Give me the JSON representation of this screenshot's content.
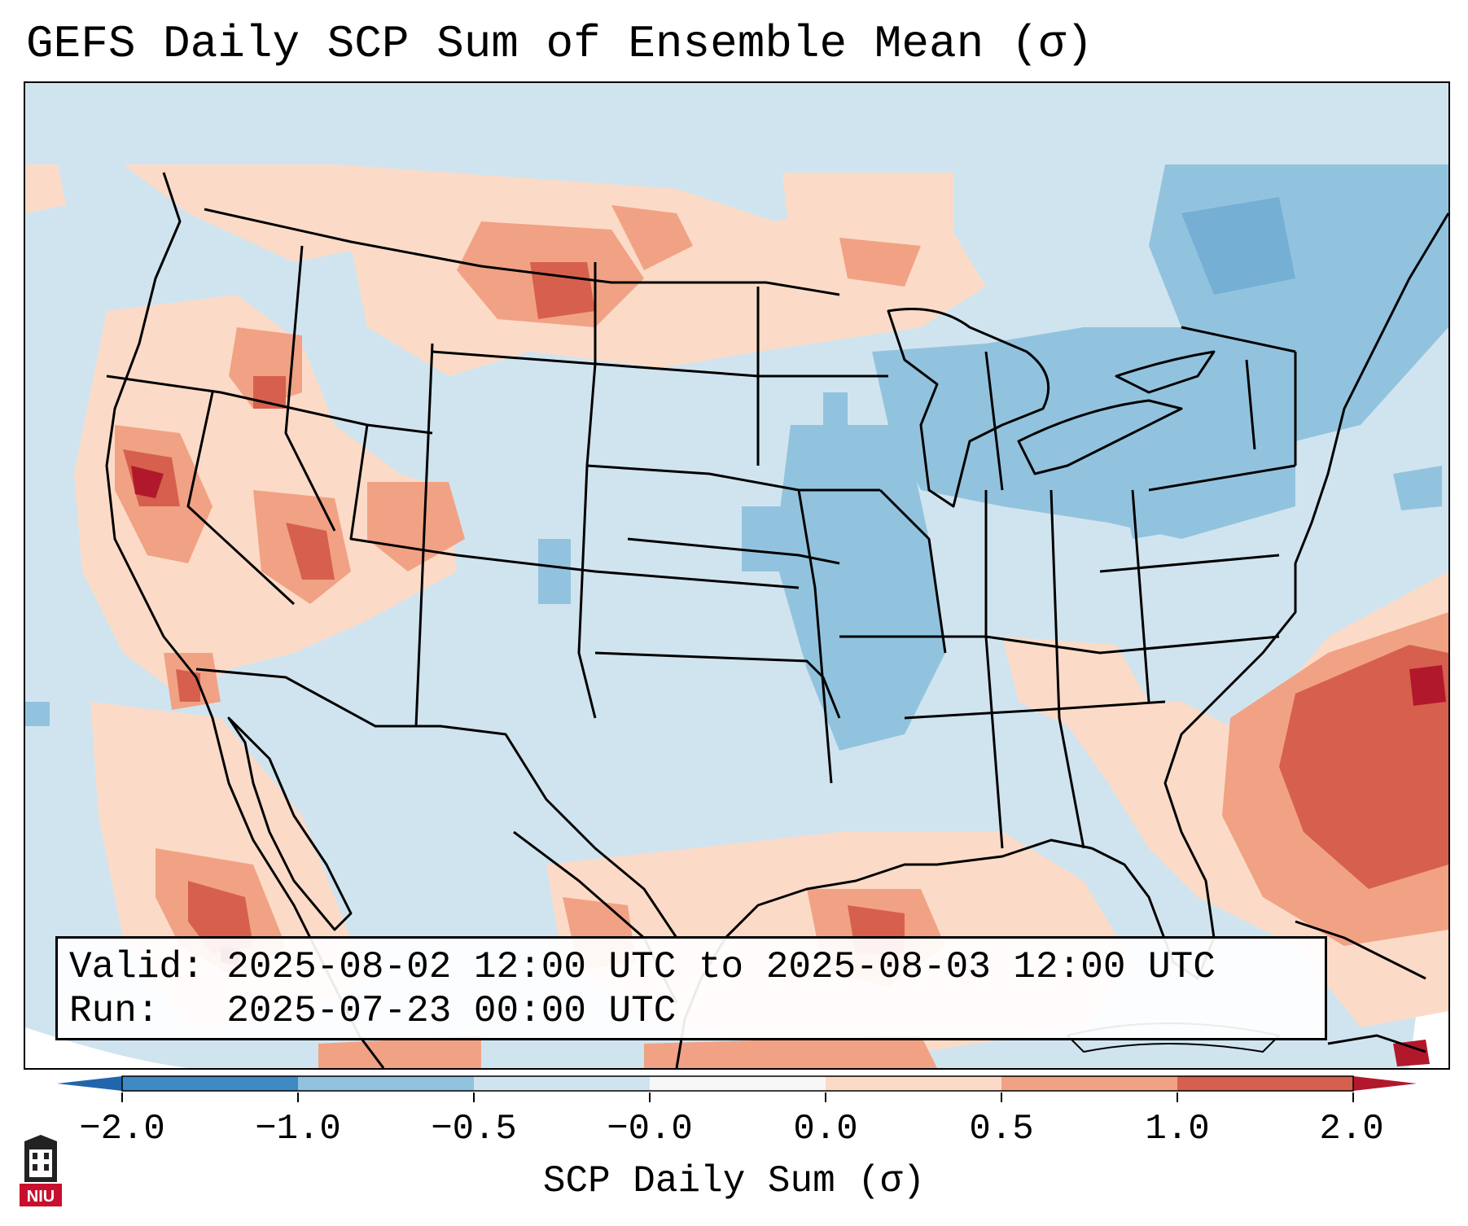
{
  "title": "GEFS Daily SCP Sum of Ensemble Mean (σ)",
  "map": {
    "region": "Contiguous United States, southern Canada, northern Mexico, Gulf of Mexico, western Atlantic",
    "variable": "SCP Daily Sum (σ)",
    "ocean_fill": "#d0e4ef"
  },
  "info_box": {
    "valid_label": "Valid:",
    "valid_value": "2025-08-02 12:00 UTC to 2025-08-03 12:00 UTC",
    "run_label": "Run:",
    "run_value": "2025-07-23 00:00 UTC"
  },
  "colorbar": {
    "label": "SCP Daily Sum (σ)",
    "ticks": [
      "−2.0",
      "−1.0",
      "−0.5",
      "−0.0",
      "0.0",
      "0.5",
      "1.0",
      "2.0"
    ],
    "colors": [
      "#3e8ac4",
      "#92c3de",
      "#d0e4ef",
      "#f7f7f7",
      "#fbdbc7",
      "#f1a284",
      "#d6604d",
      "#b2182b"
    ],
    "extend_low_color": "#2166ac",
    "extend_high_color": "#b2182b"
  },
  "logo": {
    "text": "NIU",
    "color": "#c8102e"
  }
}
